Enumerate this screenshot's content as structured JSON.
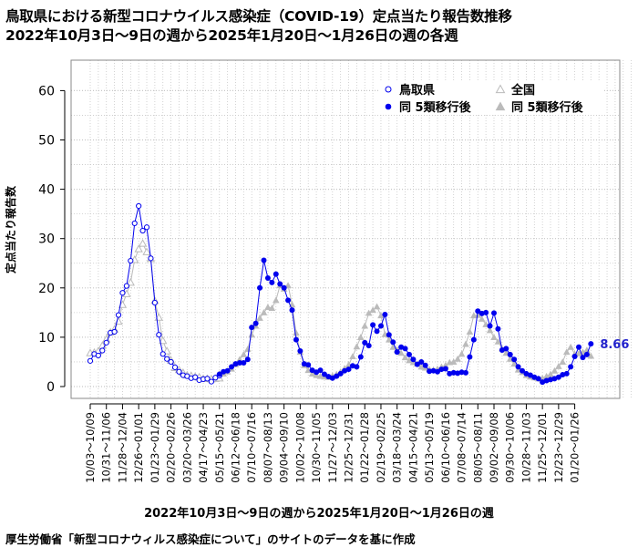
{
  "titles": {
    "line1": "鳥取県における新型コロナウイルス感染症（COVID-19）定点当たり報告数推移",
    "line2": "2022年10月3日～9日の週から2025年1月20日～1月26日の週の各週"
  },
  "xlabel_text": "2022年10月3日～9日の週から2025年1月20日～1月26日の週",
  "source_text": "厚生労働省「新型コロナウィルス感染症について」のサイトのデータを基に作成",
  "chart_data": {
    "type": "line",
    "title": "鳥取県における新型コロナウイルス感染症（COVID-19）定点当たり報告数推移",
    "subtitle": "2022年10月3日～9日の週から2025年1月20日～1月26日の週の各週",
    "xlabel": "2022年10月3日～9日の週から2025年1月20日～1月26日の週",
    "ylabel": "定点当たり報告数",
    "ylim": [
      0,
      65
    ],
    "yticks": [
      0,
      10,
      20,
      30,
      40,
      50,
      60
    ],
    "grid": true,
    "legend_position": "top-right",
    "x_tick_labels": [
      "10/03～10/09",
      "10/31～11/06",
      "11/28～12/04",
      "12/26～01/01",
      "01/23～01/29",
      "02/20～02/26",
      "03/20～03/26",
      "04/17～04/23",
      "05/15～05/21",
      "06/12～06/18",
      "07/10～07/16",
      "08/07～08/13",
      "09/04～09/10",
      "10/02～10/08",
      "10/30～11/05",
      "11/27～12/03",
      "12/25～12/31",
      "01/22～01/28",
      "02/19～02/25",
      "03/18～03/24",
      "04/15～04/21",
      "05/13～05/19",
      "06/10～06/16",
      "07/08～07/14",
      "08/05～08/11",
      "09/02～09/08",
      "09/30～10/06",
      "10/28～11/03",
      "11/25～12/01",
      "12/23～12/29",
      "01/20～01/26"
    ],
    "last_value_label": "8.66",
    "series": [
      {
        "name": "鳥取県",
        "marker": "open-circle",
        "color": "#0000ee",
        "values": [
          5.2,
          6.6,
          6.3,
          7.3,
          8.9,
          10.9,
          11.1,
          14.5,
          19.0,
          20.4,
          25.5,
          33.1,
          36.6,
          31.6,
          32.3,
          26.0,
          17.0,
          10.5,
          6.6,
          5.6,
          5.0,
          3.9,
          3.0,
          2.3,
          2.1,
          1.7,
          1.9,
          1.3,
          1.5,
          1.6,
          1.0,
          1.8,
          2.2
        ]
      },
      {
        "name": "同 5類移行後",
        "marker": "filled-circle",
        "color": "#0000ee",
        "values": [
          2.5,
          3.0,
          3.2,
          4.0,
          4.6,
          4.8,
          4.8,
          5.5,
          12.0,
          12.8,
          20.0,
          25.6,
          22.0,
          21.1,
          22.8,
          20.8,
          20.0,
          17.5,
          15.5,
          9.5,
          7.2,
          4.6,
          4.4,
          3.3,
          2.9,
          3.3,
          2.5,
          2.0,
          1.7,
          2.1,
          2.6,
          3.2,
          3.5,
          4.2,
          4.0,
          6.0,
          8.9,
          8.3,
          12.5,
          11.2,
          12.3,
          14.6,
          10.5,
          9.0,
          7.0,
          8.0,
          7.7,
          6.5,
          5.5,
          4.5,
          5.0,
          4.3,
          3.1,
          3.2,
          3.0,
          3.5,
          3.6,
          2.6,
          2.8,
          2.7,
          2.9,
          2.8,
          6.0,
          9.5,
          15.3,
          14.8,
          15.0,
          12.3,
          14.9,
          11.7,
          7.4,
          7.7,
          6.5,
          5.5,
          4.0,
          3.2,
          2.6,
          2.3,
          1.9,
          1.6,
          0.9,
          1.2,
          1.4,
          1.6,
          1.9,
          2.4,
          2.6,
          4.0,
          6.1,
          8.0,
          5.9,
          6.5,
          8.66
        ]
      },
      {
        "name": "全国",
        "marker": "open-triangle",
        "color": "#bbbbbb",
        "values": [
          6.8,
          6.9,
          7.2,
          8.3,
          9.6,
          11.0,
          11.6,
          13.2,
          16.6,
          18.8,
          21.1,
          25.7,
          27.9,
          29.0,
          27.3,
          25.9,
          17.4,
          14.0,
          9.3,
          7.2,
          5.3,
          3.8,
          3.4,
          2.8,
          2.3,
          2.2,
          2.0,
          1.9,
          1.6,
          1.6,
          1.5,
          1.6,
          1.7
        ]
      },
      {
        "name": "同 5類移行後",
        "marker": "filled-triangle",
        "color": "#bbbbbb",
        "values": [
          2.6,
          2.6,
          3.0,
          3.6,
          4.5,
          5.5,
          6.5,
          7.6,
          10.5,
          12.3,
          13.9,
          15.0,
          16.1,
          15.9,
          17.5,
          20.5,
          19.8,
          20.5,
          16.6,
          10.9,
          7.0,
          4.3,
          3.3,
          2.6,
          2.3,
          2.1,
          2.0,
          1.9,
          2.2,
          2.5,
          3.0,
          3.7,
          4.4,
          6.1,
          8.1,
          10.0,
          12.3,
          14.9,
          15.5,
          16.2,
          14.4,
          10.6,
          9.5,
          8.0,
          7.5,
          6.8,
          5.9,
          5.3,
          4.9,
          4.6,
          4.0,
          3.8,
          3.5,
          3.4,
          3.6,
          4.0,
          4.3,
          4.9,
          5.0,
          5.6,
          6.6,
          8.6,
          11.1,
          14.4,
          14.5,
          13.7,
          12.6,
          11.4,
          10.0,
          9.1,
          7.7,
          6.8,
          5.6,
          4.6,
          3.4,
          2.9,
          2.3,
          2.0,
          1.8,
          1.6,
          1.7,
          2.1,
          2.5,
          3.2,
          4.1,
          5.0,
          7.0,
          8.0,
          6.6,
          6.7,
          7.0,
          7.4,
          6.2
        ]
      }
    ]
  }
}
